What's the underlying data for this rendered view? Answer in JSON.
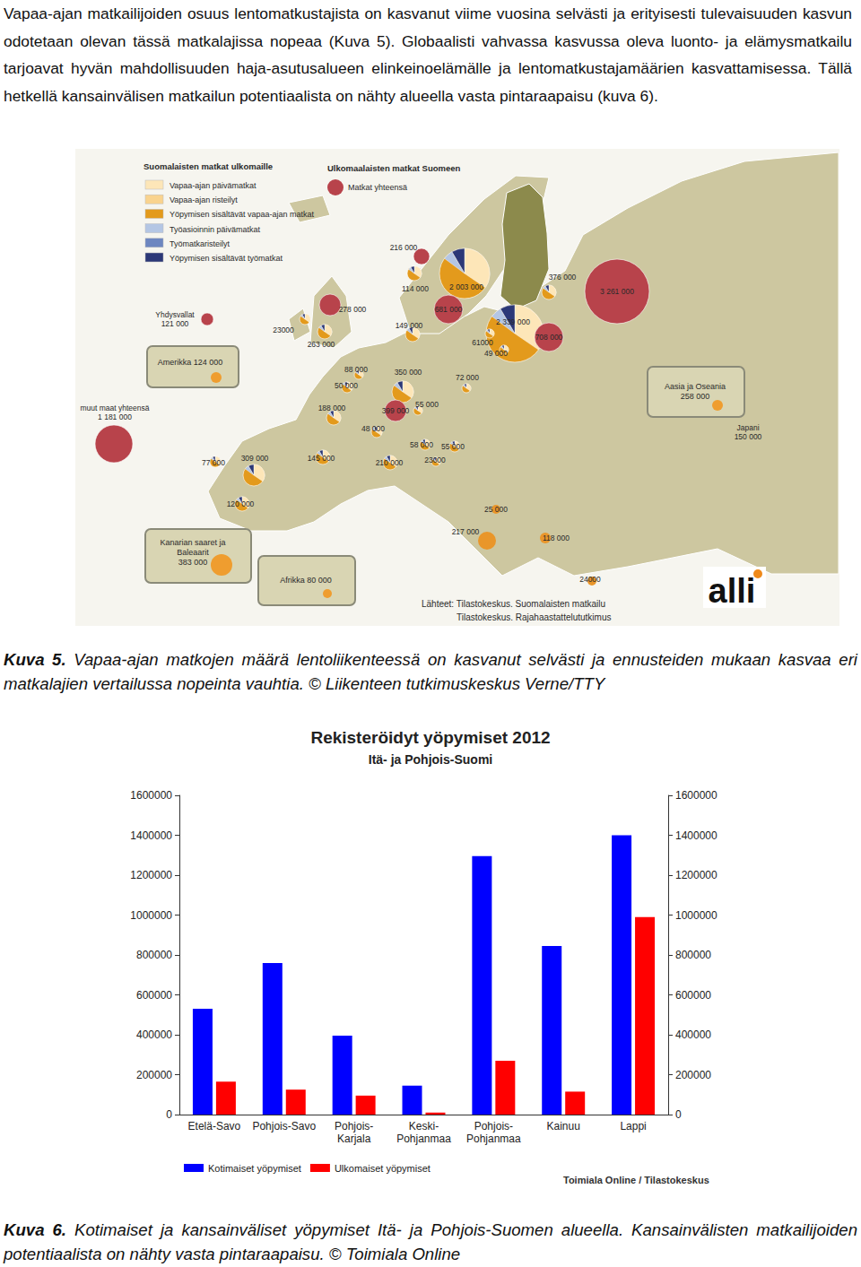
{
  "paragraph": "Vapaa-ajan matkailijoiden osuus lentomatkustajista on kasvanut viime vuosina selvästi ja erityisesti tulevaisuuden kasvun odotetaan olevan tässä matkalajissa nopeaa (Kuva 5). Globaalisti vahvassa kasvussa oleva luonto- ja elämysmatkailu tarjoavat hyvän mahdollisuuden haja-asutusalueen elinkeinoelämälle ja lentomatkustajamäärien kasvattamisessa. Tällä hetkellä kansainvälisen matkailun potentiaalista on nähty alueella vasta pintaraapaisu (kuva 6).",
  "figure5": {
    "legend1": {
      "title": "Suomalaisten matkat ulkomaille",
      "items": [
        {
          "label": "Vapaa-ajan päivämatkat",
          "color": "#fde6b8"
        },
        {
          "label": "Vapaa-ajan risteilyt",
          "color": "#f9d38e"
        },
        {
          "label": "Yöpymisen sisältävät vapaa-ajan matkat",
          "color": "#e39a1c"
        },
        {
          "label": "Työasioinnin päivämatkat",
          "color": "#b4c6e4"
        },
        {
          "label": "Työmatkaristeilyt",
          "color": "#6d86c0"
        },
        {
          "label": "Yöpymisen sisältävät työmatkat",
          "color": "#2c3877"
        }
      ]
    },
    "legend2": {
      "title": "Ulkomaalaisten matkat Suomeen",
      "item": "Matkat yhteensä",
      "color": "#b8434b"
    },
    "markers": [
      {
        "label": "216 000",
        "kind": "red"
      },
      {
        "label": "114 000",
        "kind": "pie"
      },
      {
        "label": "2 003 000",
        "kind": "pie"
      },
      {
        "label": "376 000",
        "kind": "pie"
      },
      {
        "label": "3 261 000",
        "kind": "red"
      },
      {
        "label": "681 000",
        "kind": "red"
      },
      {
        "label": "278 000",
        "kind": "red"
      },
      {
        "label": "23000",
        "kind": "pie"
      },
      {
        "label": "263 000",
        "kind": "pie"
      },
      {
        "label": "149 000",
        "kind": "pie"
      },
      {
        "label": "2 339 000",
        "kind": "pie"
      },
      {
        "label": "708 000",
        "kind": "red"
      },
      {
        "label": "61000",
        "kind": "pie"
      },
      {
        "label": "49 000",
        "kind": "pie"
      },
      {
        "label": "72 000",
        "kind": "pie"
      },
      {
        "label": "88 000",
        "kind": "pie"
      },
      {
        "label": "50 000",
        "kind": "pie"
      },
      {
        "label": "350 000",
        "kind": "pie"
      },
      {
        "label": "188 000",
        "kind": "pie"
      },
      {
        "label": "399 000",
        "kind": "red"
      },
      {
        "label": "55 000",
        "kind": "pie"
      },
      {
        "label": "48 000",
        "kind": "pie"
      },
      {
        "label": "58 000",
        "kind": "pie"
      },
      {
        "label": "55 000",
        "kind": "pie"
      },
      {
        "label": "210 000",
        "kind": "pie"
      },
      {
        "label": "23000",
        "kind": "pie"
      },
      {
        "label": "309 000",
        "kind": "pie"
      },
      {
        "label": "145 000",
        "kind": "pie"
      },
      {
        "label": "77 000",
        "kind": "pie"
      },
      {
        "label": "120 000",
        "kind": "pie"
      },
      {
        "label": "25 000",
        "kind": "dot"
      },
      {
        "label": "217 000",
        "kind": "dot"
      },
      {
        "label": "118 000",
        "kind": "dot"
      },
      {
        "label": "24000",
        "kind": "dot"
      },
      {
        "label": "Yhdysvallat\n121 000",
        "kind": "red"
      },
      {
        "label": "muut maat yhteensä\n1 181 000",
        "kind": "red"
      },
      {
        "label": "Japani\n150 000",
        "kind": "dot"
      }
    ],
    "boxes": [
      {
        "label": "Amerikka 124 000"
      },
      {
        "label": "Aasia ja Oseania\n258 000"
      },
      {
        "label": "Kanarian saaret ja\nBaleaarit\n383 000"
      },
      {
        "label": "Afrikka 80 000"
      }
    ],
    "sources": [
      "Lähteet:  Tilastokeskus. Suomalaisten matkailu",
      "Tilastokeskus. Rajahaastattelututkimus"
    ],
    "logo": "alli"
  },
  "caption5": {
    "label": "Kuva 5.",
    "text": "Vapaa-ajan matkojen määrä lentoliikenteessä on kasvanut selvästi ja ennusteiden mukaan kasvaa eri matkalajien vertailussa nopeinta vauhtia. © Liikenteen tutkimuskeskus Verne/TTY"
  },
  "chart_data": {
    "type": "bar",
    "title": "Rekisteröidyt yöpymiset 2012",
    "subtitle": "Itä- ja Pohjois-Suomi",
    "categories": [
      "Etelä-Savo",
      "Pohjois-Savo",
      "Pohjois-\nKarjala",
      "Keski-\nPohjanmaa",
      "Pohjois-\nPohjanmaa",
      "Kainuu",
      "Lappi"
    ],
    "series": [
      {
        "name": "Kotimaiset yöpymiset",
        "color": "#0000ff",
        "values": [
          530000,
          760000,
          395000,
          145000,
          1295000,
          845000,
          1400000
        ]
      },
      {
        "name": "Ulkomaiset yöpymiset",
        "color": "#ff0000",
        "values": [
          165000,
          125000,
          95000,
          10000,
          270000,
          115000,
          990000
        ]
      }
    ],
    "ylim": [
      0,
      1600000
    ],
    "yticks": [
      0,
      200000,
      400000,
      600000,
      800000,
      1000000,
      1200000,
      1400000,
      1600000
    ],
    "y2lim": [
      0,
      1600000
    ],
    "y2ticks": [
      0,
      200000,
      400000,
      600000,
      800000,
      1000000,
      1200000,
      1400000,
      1600000
    ],
    "grid": false,
    "legend": "bottom",
    "annotation": "Toimiala Online / Tilastokeskus"
  },
  "caption6": {
    "label": "Kuva 6.",
    "text": "Kotimaiset ja kansainväliset yöpymiset Itä- ja Pohjois-Suomen alueella. Kansainvälisten matkailijoiden potentiaalista on nähty vasta pintaraapaisu. © Toimiala Online"
  }
}
